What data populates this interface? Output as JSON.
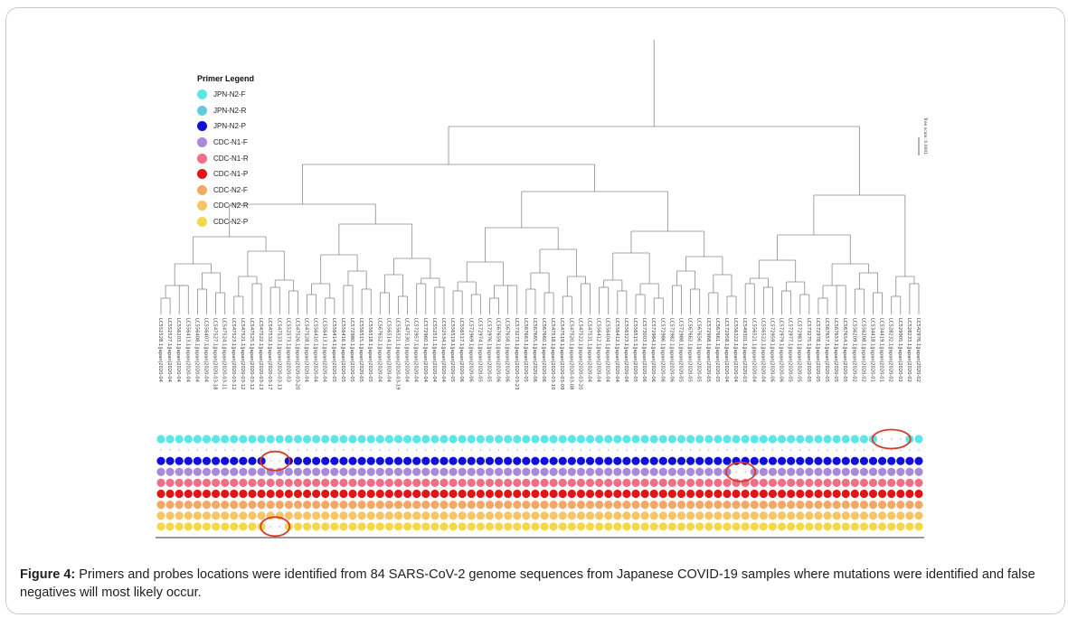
{
  "legend": {
    "title": "Primer Legend",
    "items": [
      {
        "label": "JPN-N2-F",
        "color": "#5ce6e6"
      },
      {
        "label": "JPN-N2-R",
        "color": "#66c9e0"
      },
      {
        "label": "JPN-N2-P",
        "color": "#1010d8"
      },
      {
        "label": "CDC-N1-F",
        "color": "#a98ad8"
      },
      {
        "label": "CDC-N1-R",
        "color": "#ee6f86"
      },
      {
        "label": "CDC-N1-P",
        "color": "#e01515"
      },
      {
        "label": "CDC-N2-F",
        "color": "#f4a866"
      },
      {
        "label": "CDC-N2-R",
        "color": "#f7c466"
      },
      {
        "label": "CDC-N2-P",
        "color": "#f5d84a"
      }
    ]
  },
  "tree_scale_label": "Tree scale: 0.0001",
  "samples": [
    "LC552528.1|Japan|2020-04",
    "LC552527.1|Japan|2020-04",
    "LC556203.1|Japan|2020-04",
    "LC556413.1|Japan|2020-04",
    "LC556408.1|Japan|2020-04",
    "LC556407.1|Japan|2020-04",
    "LC547527.1|Japan|2020-03-18",
    "LC547524.1|Japan|2020-03-11",
    "LC547523.1|Japan|2020-03-12",
    "LC547521.1|Japan|2020-03-12",
    "LC547525.1|Japan|2020-03-12",
    "LC547522.1|Japan|2020-03-13",
    "LC547532.1|Japan|2020-03-17",
    "LC547533.1|Japan|2020-03-13",
    "LC552573.1|Japan|2020-03",
    "LC547526.1|Japan|2020-03-20",
    "LC547528.1|Japan|2020-04",
    "LC556410.1|Japan|2020-04",
    "LC556413.1|Japan|2020-04",
    "LC556414.1|Japan|2020-05",
    "LC556416.1|Japan|2020-05",
    "LC572980.1|Japan|2020-05",
    "LC556515.1|Japan|2020-05",
    "LC556518.1|Japan|2020-05",
    "LC567652.1|Japan|2020-04",
    "LC556514.1|Japan|2020-04",
    "LC556521.1|Japan|2020-03-19",
    "LC547530.1|Japan|2020-04",
    "LC572957.1|Japan|2020-04",
    "LC572960.1|Japan|2020-04",
    "LC552511.1|Japan|2020-04",
    "LC552534.1|Japan|2020-04",
    "LC556519.1|Japan|2020-05",
    "LC556517.1|Japan|2020-06",
    "LC572969.1|Japan|2020-06",
    "LC572974.1|Japan|2020-05",
    "LC572976.1|Japan|2020-05",
    "LC567659.1|Japan|2020-06",
    "LC567658.1|Japan|2020-06",
    "LC573273.1|Japan|2020-03-23",
    "LC567663.1|Japan|2020-05",
    "LC567665.1|Japan|2020-06",
    "LC567660.1|Japan|2020-06",
    "LC547518.1|Japan|2020-03-10",
    "LC547519.1|Japan|2020-03-09",
    "LC547520.1|Japan|2020-03-08",
    "LC547522.1|Japan|2020-03-20",
    "LC547531.1|Japan|2020-04",
    "LC556412.1|Japan|2020-04",
    "LC556404.1|Japan|2020-04",
    "LC556412.1|Japan|2020-04",
    "LC556323.1|Japan|2020-04",
    "LC556515.1|Japan|2020-05",
    "LC573003.1|Japan|2020-06",
    "LC572984.1|Japan|2020-06",
    "LC572986.1|Japan|2020-06",
    "LC572982.1|Japan|2020-06",
    "LC572988.1|Japan|2020-05",
    "LC567662.1|Japan|2020-05",
    "LC567656.1|Japan|2020-05",
    "LC572968.1|Japan|2020-05",
    "LC567661.1|Japan|2020-05",
    "LC572958.1|Japan|2020-04",
    "LC556322.1|Japan|2020-04",
    "LC549301.1|Japan|2020-03",
    "LC556521.1|Japan|2020-04",
    "LC556522.1|Japan|2020-04",
    "LC572959.1|Japan|2020-06",
    "LC572979.1|Japan|2020-06",
    "LC572977.1|Japan|2020-05",
    "LC572983.1|Japan|2020-05",
    "LC573275.1|Japan|2020-05",
    "LC572978.1|Japan|2020-05",
    "LC567657.1|Japan|2020-05",
    "LC567653.1|Japan|2020-05",
    "LC567654.1|Japan|2020-05",
    "LC556209.1|Japan|2020-02",
    "LC556208.1|Japan|2020-02",
    "LC534418.1|Japan|2020-01",
    "LC534419.1|Japan|2020-01",
    "LC528232.1|Japan|2020-02",
    "LC529905.1|Japan|2020-02",
    "LC528233.1|Japan|2020-02",
    "LC542976.1|Japan|2020-02"
  ],
  "mutations": [
    {
      "row": 0,
      "samples": [
        79,
        80,
        81
      ]
    },
    {
      "row": 2,
      "samples": [
        12,
        13
      ]
    },
    {
      "row": 3,
      "samples": [
        63,
        64
      ]
    },
    {
      "row": 8,
      "samples": [
        12,
        13
      ]
    }
  ],
  "highlight_color": "#d63a2a",
  "caption": {
    "label": "Figure 4:",
    "text": " Primers and probes locations were identified from 84 SARS-CoV-2 genome sequences from Japanese COVID-19 samples where mutations were identified and false negatives will most likely occur."
  }
}
